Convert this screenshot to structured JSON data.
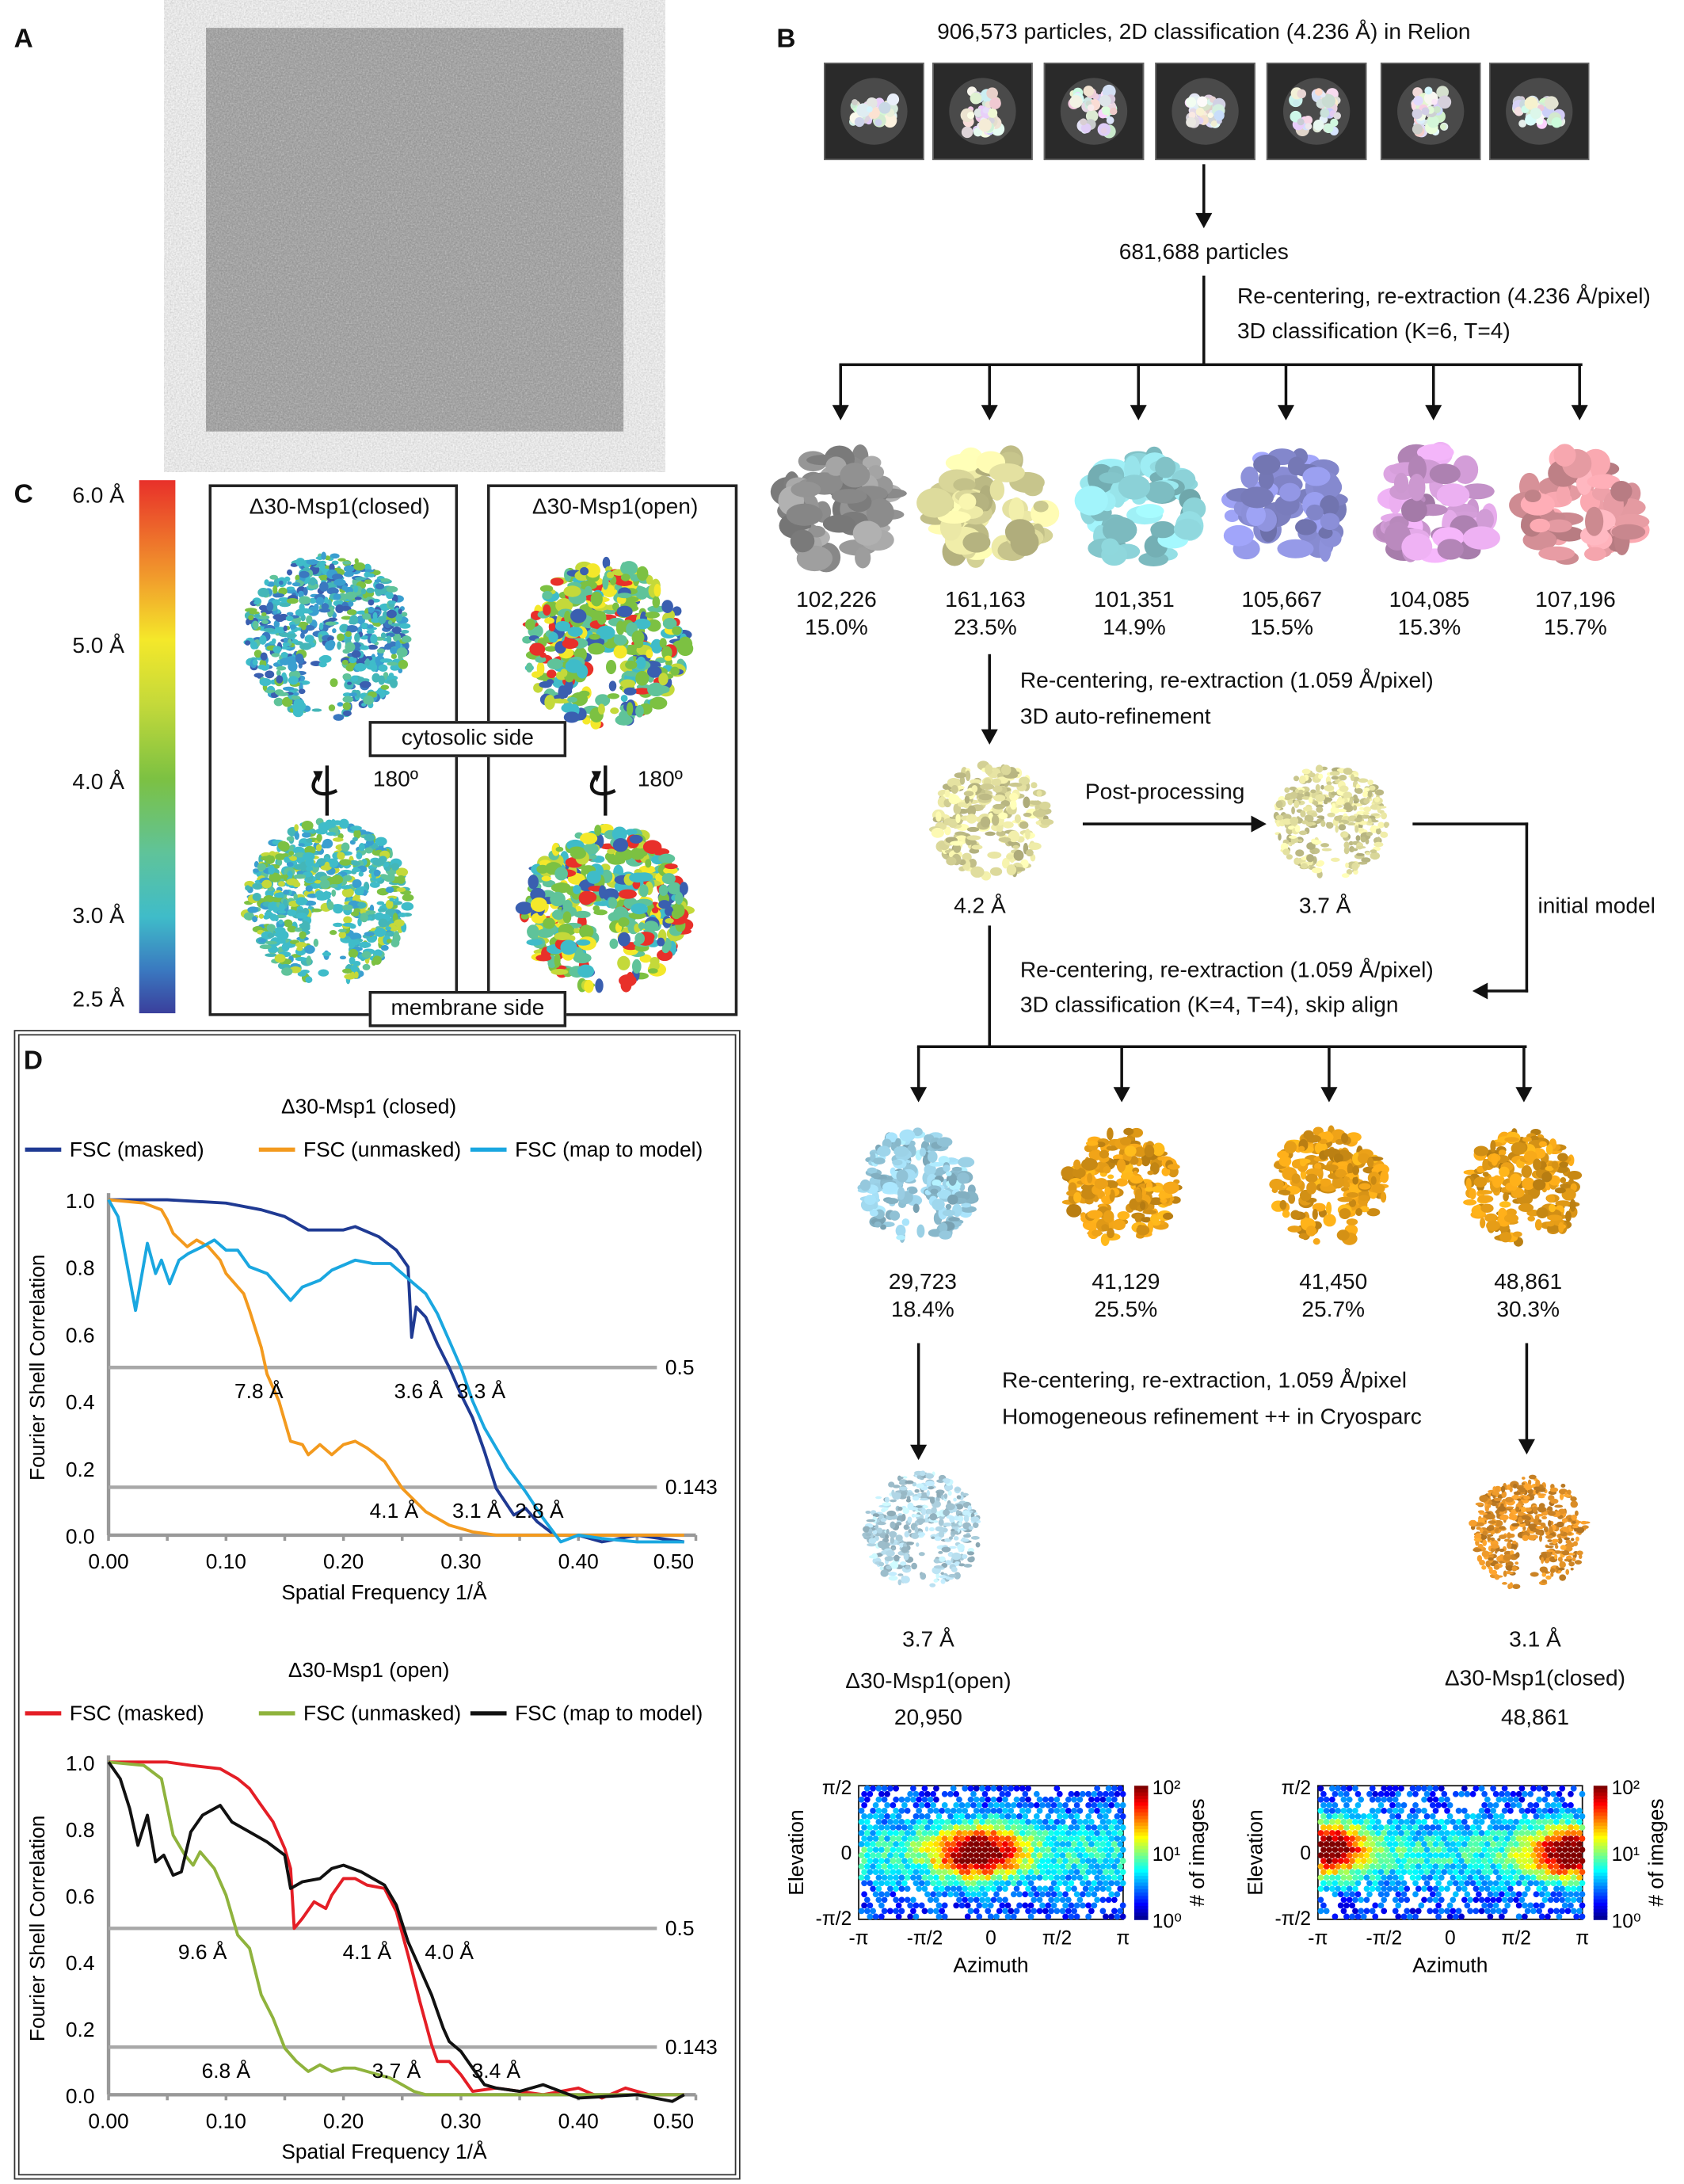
{
  "panel_labels": {
    "a": "A",
    "b": "B",
    "c": "C",
    "d": "D"
  },
  "panel_b": {
    "header": "906,573 particles, 2D classification (4.236 Å) in Relion",
    "class2d_count": 7,
    "selected_particles": "681,688 particles",
    "step1_line1": "Re-centering, re-extraction (4.236 Å/pixel)",
    "step1_line2": "3D classification (K=6, T=4)",
    "classes_3d": [
      {
        "count": "102,226",
        "percent": "15.0%",
        "color": "#9b9b9b"
      },
      {
        "count": "161,163",
        "percent": "23.5%",
        "color": "#e6e3a2"
      },
      {
        "count": "101,351",
        "percent": "14.9%",
        "color": "#93dde3"
      },
      {
        "count": "105,667",
        "percent": "15.5%",
        "color": "#8f93de"
      },
      {
        "count": "104,085",
        "percent": "15.3%",
        "color": "#d7a0dc"
      },
      {
        "count": "107,196",
        "percent": "15.7%",
        "color": "#f0a2aa"
      }
    ],
    "step2_line1": "Re-centering, re-extraction (1.059 Å/pixel)",
    "step2_line2": "3D auto-refinement",
    "refined_resolution": "4.2 Å",
    "postprocessing_label": "Post-processing",
    "postprocessed_resolution": "3.7 Å",
    "initial_model_label": "initial model",
    "step3_line1": "Re-centering, re-extraction (1.059 Å/pixel)",
    "step3_line2": "3D classification (K=4, T=4), skip align",
    "classes_second": [
      {
        "count": "29,723",
        "percent": "18.4%",
        "color": "#9fd6ec"
      },
      {
        "count": "41,129",
        "percent": "25.5%",
        "color": "#f0a418"
      },
      {
        "count": "41,450",
        "percent": "25.7%",
        "color": "#f0a418"
      },
      {
        "count": "48,861",
        "percent": "30.3%",
        "color": "#f0a418"
      }
    ],
    "step4_line1": "Re-centering, re-extraction, 1.059 Å/pixel",
    "step4_line2": "Homogeneous refinement ++ in Cryosparc",
    "final_open": {
      "resolution": "3.7 Å",
      "name": "Δ30-Msp1(open)",
      "count": "20,950",
      "color": "#b6dcec"
    },
    "final_closed": {
      "resolution": "3.1 Å",
      "name": "Δ30-Msp1(closed)",
      "count": "48,861",
      "color": "#e8962a"
    }
  },
  "panel_c": {
    "scale_labels": [
      "6.0 Å",
      "5.0 Å",
      "4.0 Å",
      "3.0 Å",
      "2.5 Å"
    ],
    "closed_title": "Δ30-Msp1(closed)",
    "open_title": "Δ30-Msp1(open)",
    "cytosolic_label": "cytosolic side",
    "membrane_label": "membrane side",
    "rotation_label": "180º"
  },
  "chart_data": [
    {
      "type": "line",
      "title": "Δ30-Msp1 (closed)",
      "xlabel": "Spatial Frequency 1/Å",
      "ylabel": "Fourier Shell Correlation",
      "xlim": [
        0,
        0.5
      ],
      "ylim": [
        0,
        1.0
      ],
      "xticks": [
        "0.00",
        "0.10",
        "0.20",
        "0.30",
        "0.40",
        "0.50"
      ],
      "yticks": [
        "0.0",
        "0.2",
        "0.4",
        "0.6",
        "0.8",
        "1.0"
      ],
      "thresholds": [
        {
          "value": 0.5,
          "label": "0.5"
        },
        {
          "value": 0.143,
          "label": "0.143"
        }
      ],
      "annotations": [
        {
          "text": "7.8 Å",
          "x": 0.128,
          "y": 0.5
        },
        {
          "text": "3.6 Å",
          "x": 0.278,
          "y": 0.5
        },
        {
          "text": "3.3 Å",
          "x": 0.303,
          "y": 0.5
        },
        {
          "text": "4.1 Å",
          "x": 0.243,
          "y": 0.143
        },
        {
          "text": "3.1 Å",
          "x": 0.323,
          "y": 0.143
        },
        {
          "text": "2.8 Å",
          "x": 0.357,
          "y": 0.143
        }
      ],
      "legend": "top",
      "series": [
        {
          "name": "FSC (masked)",
          "color": "#1f3a93",
          "x": [
            0,
            0.05,
            0.1,
            0.13,
            0.15,
            0.17,
            0.185,
            0.2,
            0.21,
            0.23,
            0.245,
            0.255,
            0.258,
            0.262,
            0.27,
            0.28,
            0.29,
            0.3,
            0.31,
            0.32,
            0.33,
            0.345,
            0.355,
            0.365,
            0.38,
            0.4,
            0.42,
            0.45,
            0.49
          ],
          "y": [
            1,
            1,
            0.99,
            0.97,
            0.95,
            0.91,
            0.91,
            0.91,
            0.92,
            0.89,
            0.85,
            0.8,
            0.59,
            0.68,
            0.65,
            0.57,
            0.5,
            0.42,
            0.35,
            0.25,
            0.14,
            0.06,
            0.08,
            0.04,
            0.0,
            0.0,
            -0.02,
            0.0,
            -0.02
          ]
        },
        {
          "name": "FSC (unmasked)",
          "color": "#f39a1e",
          "x": [
            0,
            0.03,
            0.045,
            0.05,
            0.055,
            0.067,
            0.075,
            0.085,
            0.095,
            0.1,
            0.115,
            0.12,
            0.13,
            0.135,
            0.145,
            0.155,
            0.165,
            0.17,
            0.18,
            0.19,
            0.2,
            0.21,
            0.22,
            0.235,
            0.25,
            0.27,
            0.29,
            0.31,
            0.33,
            0.4,
            0.49
          ],
          "y": [
            1,
            0.99,
            0.97,
            0.94,
            0.9,
            0.86,
            0.88,
            0.86,
            0.82,
            0.78,
            0.72,
            0.67,
            0.56,
            0.48,
            0.4,
            0.28,
            0.27,
            0.24,
            0.27,
            0.24,
            0.27,
            0.28,
            0.26,
            0.22,
            0.14,
            0.07,
            0.03,
            0.01,
            0.0,
            0.0,
            0.0
          ]
        },
        {
          "name": "FSC (map to model)",
          "color": "#1aa7e0",
          "x": [
            0,
            0.008,
            0.015,
            0.023,
            0.033,
            0.04,
            0.045,
            0.052,
            0.06,
            0.068,
            0.08,
            0.09,
            0.1,
            0.11,
            0.12,
            0.135,
            0.145,
            0.155,
            0.165,
            0.18,
            0.19,
            0.21,
            0.225,
            0.24,
            0.25,
            0.26,
            0.27,
            0.28,
            0.29,
            0.3,
            0.31,
            0.32,
            0.34,
            0.355,
            0.37,
            0.385,
            0.4,
            0.42,
            0.45,
            0.49
          ],
          "y": [
            1,
            0.95,
            0.82,
            0.67,
            0.87,
            0.78,
            0.82,
            0.75,
            0.82,
            0.84,
            0.86,
            0.88,
            0.85,
            0.85,
            0.8,
            0.78,
            0.74,
            0.7,
            0.74,
            0.76,
            0.79,
            0.82,
            0.81,
            0.81,
            0.78,
            0.75,
            0.72,
            0.66,
            0.58,
            0.5,
            0.4,
            0.32,
            0.2,
            0.13,
            0.05,
            -0.02,
            0.0,
            -0.01,
            -0.02,
            -0.02
          ]
        }
      ]
    },
    {
      "type": "line",
      "title": "Δ30-Msp1 (open)",
      "xlabel": "Spatial Frequency 1/Å",
      "ylabel": "Fourier Shell Correlation",
      "xlim": [
        0,
        0.5
      ],
      "ylim": [
        0,
        1.0
      ],
      "xticks": [
        "0.00",
        "0.10",
        "0.20",
        "0.30",
        "0.40",
        "0.50"
      ],
      "yticks": [
        "0.0",
        "0.2",
        "0.4",
        "0.6",
        "0.8",
        "1.0"
      ],
      "thresholds": [
        {
          "value": 0.5,
          "label": "0.5"
        },
        {
          "value": 0.143,
          "label": "0.143"
        }
      ],
      "annotations": [
        {
          "text": "9.6 Å",
          "x": 0.08,
          "y": 0.5
        },
        {
          "text": "4.1 Å",
          "x": 0.22,
          "y": 0.5
        },
        {
          "text": "4.0 Å",
          "x": 0.29,
          "y": 0.5
        },
        {
          "text": "6.8 Å",
          "x": 0.1,
          "y": 0.143
        },
        {
          "text": "3.7 Å",
          "x": 0.245,
          "y": 0.143
        },
        {
          "text": "3.4 Å",
          "x": 0.33,
          "y": 0.143
        }
      ],
      "legend": "top",
      "series": [
        {
          "name": "FSC (masked)",
          "color": "#e41e26",
          "x": [
            0,
            0.05,
            0.07,
            0.095,
            0.11,
            0.12,
            0.13,
            0.14,
            0.15,
            0.155,
            0.158,
            0.165,
            0.175,
            0.185,
            0.19,
            0.2,
            0.21,
            0.22,
            0.235,
            0.245,
            0.255,
            0.265,
            0.275,
            0.28,
            0.29,
            0.3,
            0.31,
            0.33,
            0.35,
            0.37,
            0.4,
            0.42,
            0.44,
            0.46,
            0.49
          ],
          "y": [
            1,
            1,
            0.99,
            0.98,
            0.95,
            0.92,
            0.87,
            0.82,
            0.74,
            0.68,
            0.5,
            0.53,
            0.58,
            0.56,
            0.6,
            0.65,
            0.65,
            0.63,
            0.62,
            0.55,
            0.42,
            0.28,
            0.15,
            0.1,
            0.1,
            0.06,
            0.01,
            0.02,
            0.01,
            0.0,
            0.02,
            -0.01,
            0.02,
            0.0,
            0.0
          ]
        },
        {
          "name": "FSC (unmasked)",
          "color": "#8fb33d",
          "x": [
            0,
            0.03,
            0.045,
            0.055,
            0.065,
            0.072,
            0.078,
            0.09,
            0.1,
            0.11,
            0.12,
            0.13,
            0.14,
            0.15,
            0.16,
            0.17,
            0.18,
            0.19,
            0.2,
            0.21,
            0.22,
            0.23,
            0.24,
            0.25,
            0.26,
            0.27,
            0.3,
            0.4,
            0.49
          ],
          "y": [
            1,
            0.99,
            0.95,
            0.78,
            0.72,
            0.69,
            0.73,
            0.68,
            0.6,
            0.48,
            0.44,
            0.3,
            0.23,
            0.14,
            0.1,
            0.07,
            0.09,
            0.07,
            0.08,
            0.08,
            0.07,
            0.06,
            0.05,
            0.03,
            0.01,
            0.0,
            0.0,
            0.0,
            0.0
          ]
        },
        {
          "name": "FSC (map to model)",
          "color": "#111111",
          "x": [
            0,
            0.01,
            0.018,
            0.025,
            0.033,
            0.04,
            0.047,
            0.055,
            0.062,
            0.07,
            0.08,
            0.095,
            0.105,
            0.12,
            0.135,
            0.15,
            0.155,
            0.165,
            0.18,
            0.19,
            0.2,
            0.215,
            0.235,
            0.245,
            0.255,
            0.265,
            0.275,
            0.285,
            0.29,
            0.3,
            0.31,
            0.32,
            0.33,
            0.35,
            0.37,
            0.4,
            0.45,
            0.48,
            0.49
          ],
          "y": [
            1,
            0.95,
            0.86,
            0.75,
            0.84,
            0.7,
            0.72,
            0.66,
            0.67,
            0.79,
            0.84,
            0.87,
            0.82,
            0.79,
            0.76,
            0.72,
            0.62,
            0.64,
            0.65,
            0.68,
            0.69,
            0.67,
            0.63,
            0.57,
            0.46,
            0.38,
            0.3,
            0.2,
            0.16,
            0.13,
            0.08,
            0.03,
            0.02,
            0.01,
            0.03,
            -0.01,
            0.0,
            -0.02,
            0.0
          ]
        }
      ]
    },
    {
      "type": "heatmap",
      "xlabel": "Azimuth",
      "ylabel": "Elevation",
      "xticks": [
        "-π",
        "-π/2",
        "0",
        "π/2",
        "π"
      ],
      "yticks": [
        "π/2",
        "0",
        "-π/2"
      ],
      "colorbar_label": "# of images",
      "colorbar_ticks": [
        "10⁰",
        "10¹",
        "10²"
      ],
      "density_peaks": [
        {
          "azimuth": -0.3,
          "elevation": 0.0
        }
      ],
      "colormap": "jet"
    },
    {
      "type": "heatmap",
      "xlabel": "Azimuth",
      "ylabel": "Elevation",
      "xticks": [
        "-π",
        "-π/2",
        "0",
        "π/2",
        "π"
      ],
      "yticks": [
        "π/2",
        "0",
        "-π/2"
      ],
      "colorbar_label": "# of images",
      "colorbar_ticks": [
        "10⁰",
        "10¹",
        "10²"
      ],
      "density_peaks": [
        {
          "azimuth": -3.0,
          "elevation": 0.1
        },
        {
          "azimuth": 2.9,
          "elevation": 0.0
        }
      ],
      "colormap": "jet"
    }
  ]
}
